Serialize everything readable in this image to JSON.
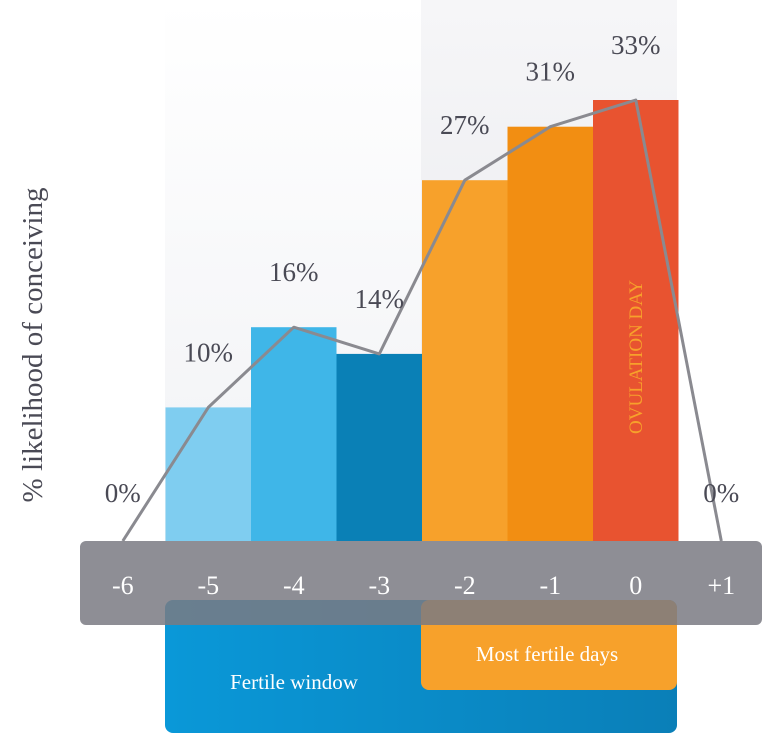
{
  "chart_data": {
    "type": "bar",
    "ylabel": "% likelihood of conceiving",
    "categories": [
      "-6",
      "-5",
      "-4",
      "-3",
      "-2",
      "-1",
      "0",
      "+1"
    ],
    "values": [
      0,
      10,
      16,
      14,
      27,
      31,
      33,
      0
    ],
    "value_labels": [
      "0%",
      "10%",
      "16%",
      "14%",
      "27%",
      "31%",
      "33%",
      "0%"
    ],
    "bar_colors": [
      "#ffffff",
      "#7fcdf0",
      "#3fb6e8",
      "#0a80b6",
      "#f7a12b",
      "#f28e12",
      "#e85330",
      "#ffffff"
    ],
    "ylim": [
      0,
      33
    ],
    "annotation": "OVULATION DAY",
    "annotation_color": "#f7a12b",
    "line_color": "#8a8a90",
    "axis_band_color": "#7a7a82",
    "ranges": [
      {
        "label": "Fertile window",
        "from": "-5",
        "to": "0",
        "color": "#0a8fd0"
      },
      {
        "label": "Most fertile days",
        "from": "-2",
        "to": "0",
        "color": "#f7a12b"
      }
    ]
  }
}
